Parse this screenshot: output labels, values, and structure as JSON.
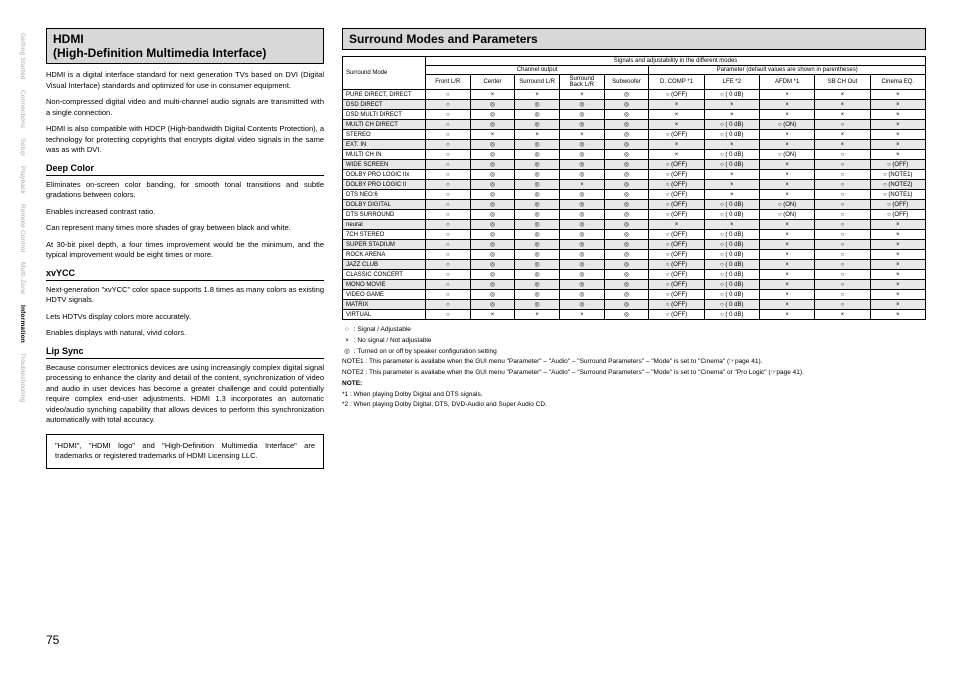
{
  "sidebar": [
    {
      "label": "Getting Started",
      "active": false
    },
    {
      "label": "Connections",
      "active": false
    },
    {
      "label": "Setup",
      "active": false
    },
    {
      "label": "Playback",
      "active": false
    },
    {
      "label": "Remote Control",
      "active": false
    },
    {
      "label": "Multi-Zone",
      "active": false
    },
    {
      "label": "Information",
      "active": true
    },
    {
      "label": "Troubleshooting",
      "active": false
    }
  ],
  "page_num": "75",
  "left": {
    "h1a": "HDMI",
    "h1b": "(High-Definition Multimedia Interface)",
    "p1": "HDMI is a digital interface standard for next generation TVs based on DVI (Digital Visual Interface) standards and optimized for use in consumer equipment.",
    "p2": "Non-compressed digital video and multi-channel audio signals are transmitted with a single connection.",
    "p3": "HDMI is also compatible with HDCP (High-bandwidth Digital Contents Protection), a technology for protecting copyrights that encrypts digital video signals in the same was as with DVI.",
    "s1": "Deep Color",
    "s1p1": "Eliminates on-screen color banding, for smooth tonal transitions and subtle gradations between colors.",
    "s1p2": "Enables increased contrast ratio.",
    "s1p3": "Can represent many times more shades of gray between black and white.",
    "s1p4": "At 30-bit pixel depth, a four times improvement would be the minimum, and the typical improvement would be eight times or more.",
    "s2": "xvYCC",
    "s2p1": "Next-generation \"xvYCC\" color space supports 1.8 times as many colors as existing HDTV signals.",
    "s2p2": "Lets HDTVs display colors more accurately.",
    "s2p3": "Enables displays with natural, vivid colors.",
    "s3": "Lip Sync",
    "s3p1": "Because consumer electronics devices are using increasingly complex digital signal processing to enhance the clarity and detail of the content, synchronization of video and audio in user devices has become a greater challenge and could potentially require complex end-user adjustments. HDMI 1.3 incorporates an automatic video/audio synching capability that allows devices to perform this synchronization automatically with total accuracy.",
    "tm": "\"HDMI\", \"HDMI logo\" and \"High-Definition Multimedia Interface\" are trademarks or registered trademarks of HDMI Licensing LLC."
  },
  "right": {
    "h1": "Surround Modes and Parameters",
    "top_header": "Signals and adjustability in the different modes",
    "ch_header": "Channel output",
    "param_header": "Parameter (default values are shown in parentheses)",
    "mode_header": "Surround Mode",
    "cols_ch": [
      "Front L/R",
      "Center",
      "Surround L/R",
      "Surround Back L/R",
      "Subwoofer"
    ],
    "cols_param": [
      "D. COMP *1",
      "LFE *2",
      "AFDM *1",
      "SB CH Out",
      "Cinema EQ."
    ],
    "sym": {
      "c": "○",
      "x": "×",
      "d": "◎"
    },
    "rows": [
      {
        "m": "PURE DIRECT, DIRECT",
        "c": [
          "c",
          "x",
          "x",
          "x",
          "d"
        ],
        "p": [
          "c (OFF)",
          "c ( 0 dB)",
          "x",
          "x",
          "x"
        ],
        "g": 0
      },
      {
        "m": "DSD DIRECT",
        "c": [
          "c",
          "d",
          "d",
          "d",
          "d"
        ],
        "p": [
          "x",
          "x",
          "x",
          "x",
          "x"
        ],
        "g": 1
      },
      {
        "m": "DSD MULTI DIRECT",
        "c": [
          "c",
          "d",
          "d",
          "d",
          "d"
        ],
        "p": [
          "x",
          "x",
          "x",
          "x",
          "x"
        ],
        "g": 0
      },
      {
        "m": "MULTI CH DIRECT",
        "c": [
          "c",
          "d",
          "d",
          "d",
          "d"
        ],
        "p": [
          "x",
          "c ( 0 dB)",
          "c (ON)",
          "c",
          "x"
        ],
        "g": 1
      },
      {
        "m": "STEREO",
        "c": [
          "c",
          "x",
          "x",
          "x",
          "d"
        ],
        "p": [
          "c (OFF)",
          "c ( 0 dB)",
          "x",
          "x",
          "x"
        ],
        "g": 0
      },
      {
        "m": "EXT. IN",
        "c": [
          "c",
          "d",
          "d",
          "d",
          "d"
        ],
        "p": [
          "x",
          "x",
          "x",
          "x",
          "x"
        ],
        "g": 1
      },
      {
        "m": "MULTI CH IN",
        "c": [
          "c",
          "d",
          "d",
          "d",
          "d"
        ],
        "p": [
          "x",
          "c ( 0 dB)",
          "c (ON)",
          "c",
          "x"
        ],
        "g": 0
      },
      {
        "m": "WIDE SCREEN",
        "c": [
          "c",
          "d",
          "d",
          "d",
          "d"
        ],
        "p": [
          "c (OFF)",
          "c ( 0 dB)",
          "x",
          "c",
          "c (OFF)"
        ],
        "g": 1
      },
      {
        "m": "DOLBY PRO LOGIC IIx",
        "c": [
          "c",
          "d",
          "d",
          "d",
          "d"
        ],
        "p": [
          "c (OFF)",
          "x",
          "x",
          "c",
          "c (NOTE1)"
        ],
        "g": 0
      },
      {
        "m": "DOLBY PRO LOGIC II",
        "c": [
          "c",
          "d",
          "d",
          "x",
          "d"
        ],
        "p": [
          "c (OFF)",
          "x",
          "x",
          "c",
          "c (NOTE2)"
        ],
        "g": 1
      },
      {
        "m": "DTS NEO:6",
        "c": [
          "c",
          "d",
          "d",
          "d",
          "d"
        ],
        "p": [
          "c (OFF)",
          "x",
          "x",
          "c",
          "c (NOTE1)"
        ],
        "g": 0
      },
      {
        "m": "DOLBY DIGITAL",
        "c": [
          "c",
          "d",
          "d",
          "d",
          "d"
        ],
        "p": [
          "c (OFF)",
          "c ( 0 dB)",
          "c (ON)",
          "c",
          "c (OFF)"
        ],
        "g": 1
      },
      {
        "m": "DTS SURROUND",
        "c": [
          "c",
          "d",
          "d",
          "d",
          "d"
        ],
        "p": [
          "c (OFF)",
          "c ( 0 dB)",
          "c (ON)",
          "c",
          "c (OFF)"
        ],
        "g": 0
      },
      {
        "m": "neural",
        "c": [
          "c",
          "d",
          "d",
          "d",
          "d"
        ],
        "p": [
          "x",
          "x",
          "x",
          "c",
          "x"
        ],
        "g": 1
      },
      {
        "m": "7CH STEREO",
        "c": [
          "c",
          "d",
          "d",
          "d",
          "d"
        ],
        "p": [
          "c (OFF)",
          "c ( 0 dB)",
          "x",
          "c",
          "x"
        ],
        "g": 0
      },
      {
        "m": "SUPER STADIUM",
        "c": [
          "c",
          "d",
          "d",
          "d",
          "d"
        ],
        "p": [
          "c (OFF)",
          "c ( 0 dB)",
          "x",
          "c",
          "x"
        ],
        "g": 1
      },
      {
        "m": "ROCK ARENA",
        "c": [
          "c",
          "d",
          "d",
          "d",
          "d"
        ],
        "p": [
          "c (OFF)",
          "c ( 0 dB)",
          "x",
          "c",
          "x"
        ],
        "g": 0
      },
      {
        "m": "JAZZ CLUB",
        "c": [
          "c",
          "d",
          "d",
          "d",
          "d"
        ],
        "p": [
          "c (OFF)",
          "c ( 0 dB)",
          "x",
          "c",
          "x"
        ],
        "g": 1
      },
      {
        "m": "CLASSIC CONCERT",
        "c": [
          "c",
          "d",
          "d",
          "d",
          "d"
        ],
        "p": [
          "c (OFF)",
          "c ( 0 dB)",
          "x",
          "c",
          "x"
        ],
        "g": 0
      },
      {
        "m": "MONO MOVIE",
        "c": [
          "c",
          "d",
          "d",
          "d",
          "d"
        ],
        "p": [
          "c (OFF)",
          "c ( 0 dB)",
          "x",
          "c",
          "x"
        ],
        "g": 1
      },
      {
        "m": "VIDEO GAME",
        "c": [
          "c",
          "d",
          "d",
          "d",
          "d"
        ],
        "p": [
          "c (OFF)",
          "c ( 0 dB)",
          "x",
          "c",
          "x"
        ],
        "g": 0
      },
      {
        "m": "MATRIX",
        "c": [
          "c",
          "d",
          "d",
          "d",
          "d"
        ],
        "p": [
          "c (OFF)",
          "c ( 0 dB)",
          "x",
          "c",
          "x"
        ],
        "g": 1
      },
      {
        "m": "VIRTUAL",
        "c": [
          "c",
          "x",
          "x",
          "x",
          "d"
        ],
        "p": [
          "c (OFF)",
          "c ( 0 dB)",
          "x",
          "x",
          "x"
        ],
        "g": 0
      }
    ],
    "legend": {
      "l1": "Signal / Adjustable",
      "l2": "No signal / Not adjustable",
      "l3": "Turned on or off by speaker configuration setting",
      "n1": "NOTE1 : This parameter is availabe when the GUI menu \"Parameter\" – \"Audio\" – \"Surround Parameters\" – \"Mode\" is set to \"Cinema\" (☞page 41).",
      "n2": "NOTE2 : This parameter is availabe when the GUI menu \"Parameter\" – \"Audio\" – \"Surround Parameters\" – \"Mode\" is set to \"Cinema\" or \"Pro Logic\" (☞page 41).",
      "note": "NOTE:",
      "s1": "*1 :      When playing Dolby Digital and DTS signals.",
      "s2": "*2 :      When playing Dolby Digital, DTS, DVD-Audio and Super Audio CD."
    }
  }
}
